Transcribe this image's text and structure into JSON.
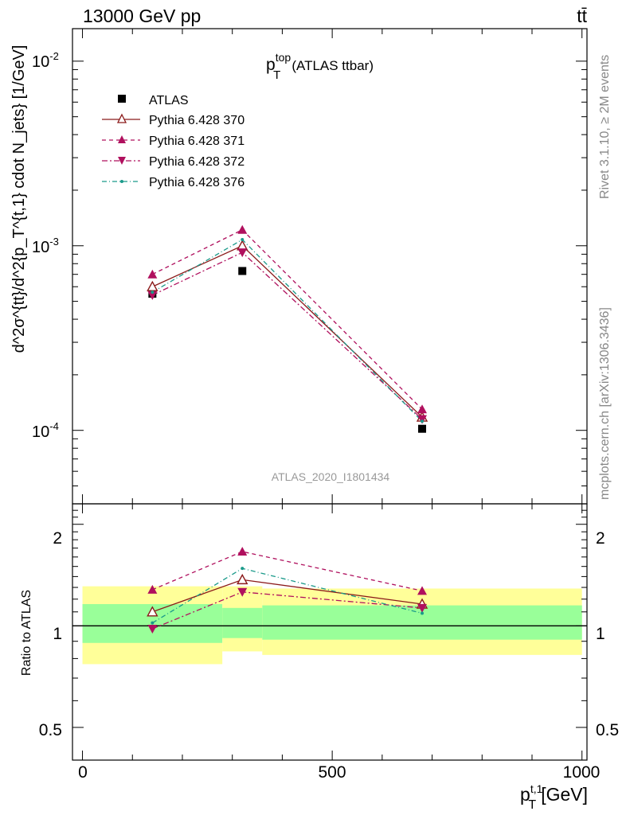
{
  "header": {
    "energy_label": "13000 GeV pp",
    "process_label": "tt̄"
  },
  "side_labels": {
    "rivet": "Rivet 3.1.10, ≥ 2M events",
    "mcplots": "mcplots.cern.ch [arXiv:1306.3436]"
  },
  "main_plot": {
    "title_main": "p",
    "title_sup": "top",
    "title_sub": "T",
    "title_tail": "(ATLAS ttbar)",
    "watermark": "ATLAS_2020_I1801434",
    "ylabel": "d^2σ^{tt}/d^2{p_T^{t,1} cdot N_jets} [1/GeV]",
    "y_tick_labels": [
      "10",
      "10",
      "10"
    ],
    "y_tick_exponents": [
      "-2",
      "-3",
      "-4"
    ]
  },
  "ratio_plot": {
    "ylabel": "Ratio to ATLAS",
    "y_tick_labels": [
      "2",
      "1",
      "0.5"
    ]
  },
  "x_axis": {
    "label_main": "p",
    "label_sup": "t,1",
    "label_sub": "T",
    "label_unit": "[GeV]",
    "tick_labels": [
      "0",
      "500",
      "1000"
    ]
  },
  "legend": {
    "entries": [
      "ATLAS",
      "Pythia 6.428 370",
      "Pythia 6.428 371",
      "Pythia 6.428 372",
      "Pythia 6.428 376"
    ]
  },
  "chart_data": [
    {
      "type": "line",
      "title": "p_T^top (ATLAS ttbar)",
      "xlabel": "p_T^{t,1} [GeV]",
      "ylabel": "d^2σ/d^2{p_T^{t,1} cdot N_jets} [1/GeV]",
      "xlim": [
        -20,
        1010
      ],
      "ylim": [
        4e-05,
        0.015
      ],
      "yscale": "log",
      "x": [
        140,
        320,
        680
      ],
      "bins": [
        [
          0,
          280
        ],
        [
          280,
          360
        ],
        [
          360,
          1000
        ]
      ],
      "series": [
        {
          "name": "ATLAS",
          "color": "#000000",
          "marker": "square",
          "line": "none",
          "values": [
            0.00055,
            0.00073,
            0.000102
          ]
        },
        {
          "name": "Pythia 6.428 370",
          "color": "#8b1a1a",
          "marker": "triangle-up-open",
          "line": "solid",
          "values": [
            0.0006,
            0.001,
            0.000118
          ]
        },
        {
          "name": "Pythia 6.428 371",
          "color": "#b0105e",
          "marker": "triangle-up",
          "line": "dashed",
          "values": [
            0.0007,
            0.00122,
            0.00013
          ]
        },
        {
          "name": "Pythia 6.428 372",
          "color": "#b0105e",
          "marker": "triangle-down",
          "line": "dashdot",
          "values": [
            0.00054,
            0.00092,
            0.000115
          ]
        },
        {
          "name": "Pythia 6.428 376",
          "color": "#1a9a8a",
          "marker": "dot",
          "line": "dashdot-fine",
          "values": [
            0.00056,
            0.00108,
            0.000112
          ]
        }
      ]
    },
    {
      "type": "line",
      "ylabel": "Ratio to ATLAS",
      "xlabel": "p_T^{t,1} [GeV]",
      "xlim": [
        -20,
        1010
      ],
      "ylim": [
        0.4,
        2.3
      ],
      "yscale": "log",
      "x": [
        140,
        320,
        680
      ],
      "bands": {
        "yellow": [
          [
            0.77,
            1.31
          ],
          [
            0.84,
            1.31
          ],
          [
            0.82,
            1.29
          ]
        ],
        "green": [
          [
            0.89,
            1.16
          ],
          [
            0.92,
            1.13
          ],
          [
            0.91,
            1.15
          ]
        ]
      },
      "series": [
        {
          "name": "Pythia 6.428 370",
          "values": [
            1.1,
            1.37,
            1.16
          ]
        },
        {
          "name": "Pythia 6.428 371",
          "values": [
            1.28,
            1.66,
            1.27
          ]
        },
        {
          "name": "Pythia 6.428 372",
          "values": [
            0.98,
            1.26,
            1.13
          ]
        },
        {
          "name": "Pythia 6.428 376",
          "values": [
            1.02,
            1.48,
            1.09
          ]
        }
      ]
    }
  ]
}
